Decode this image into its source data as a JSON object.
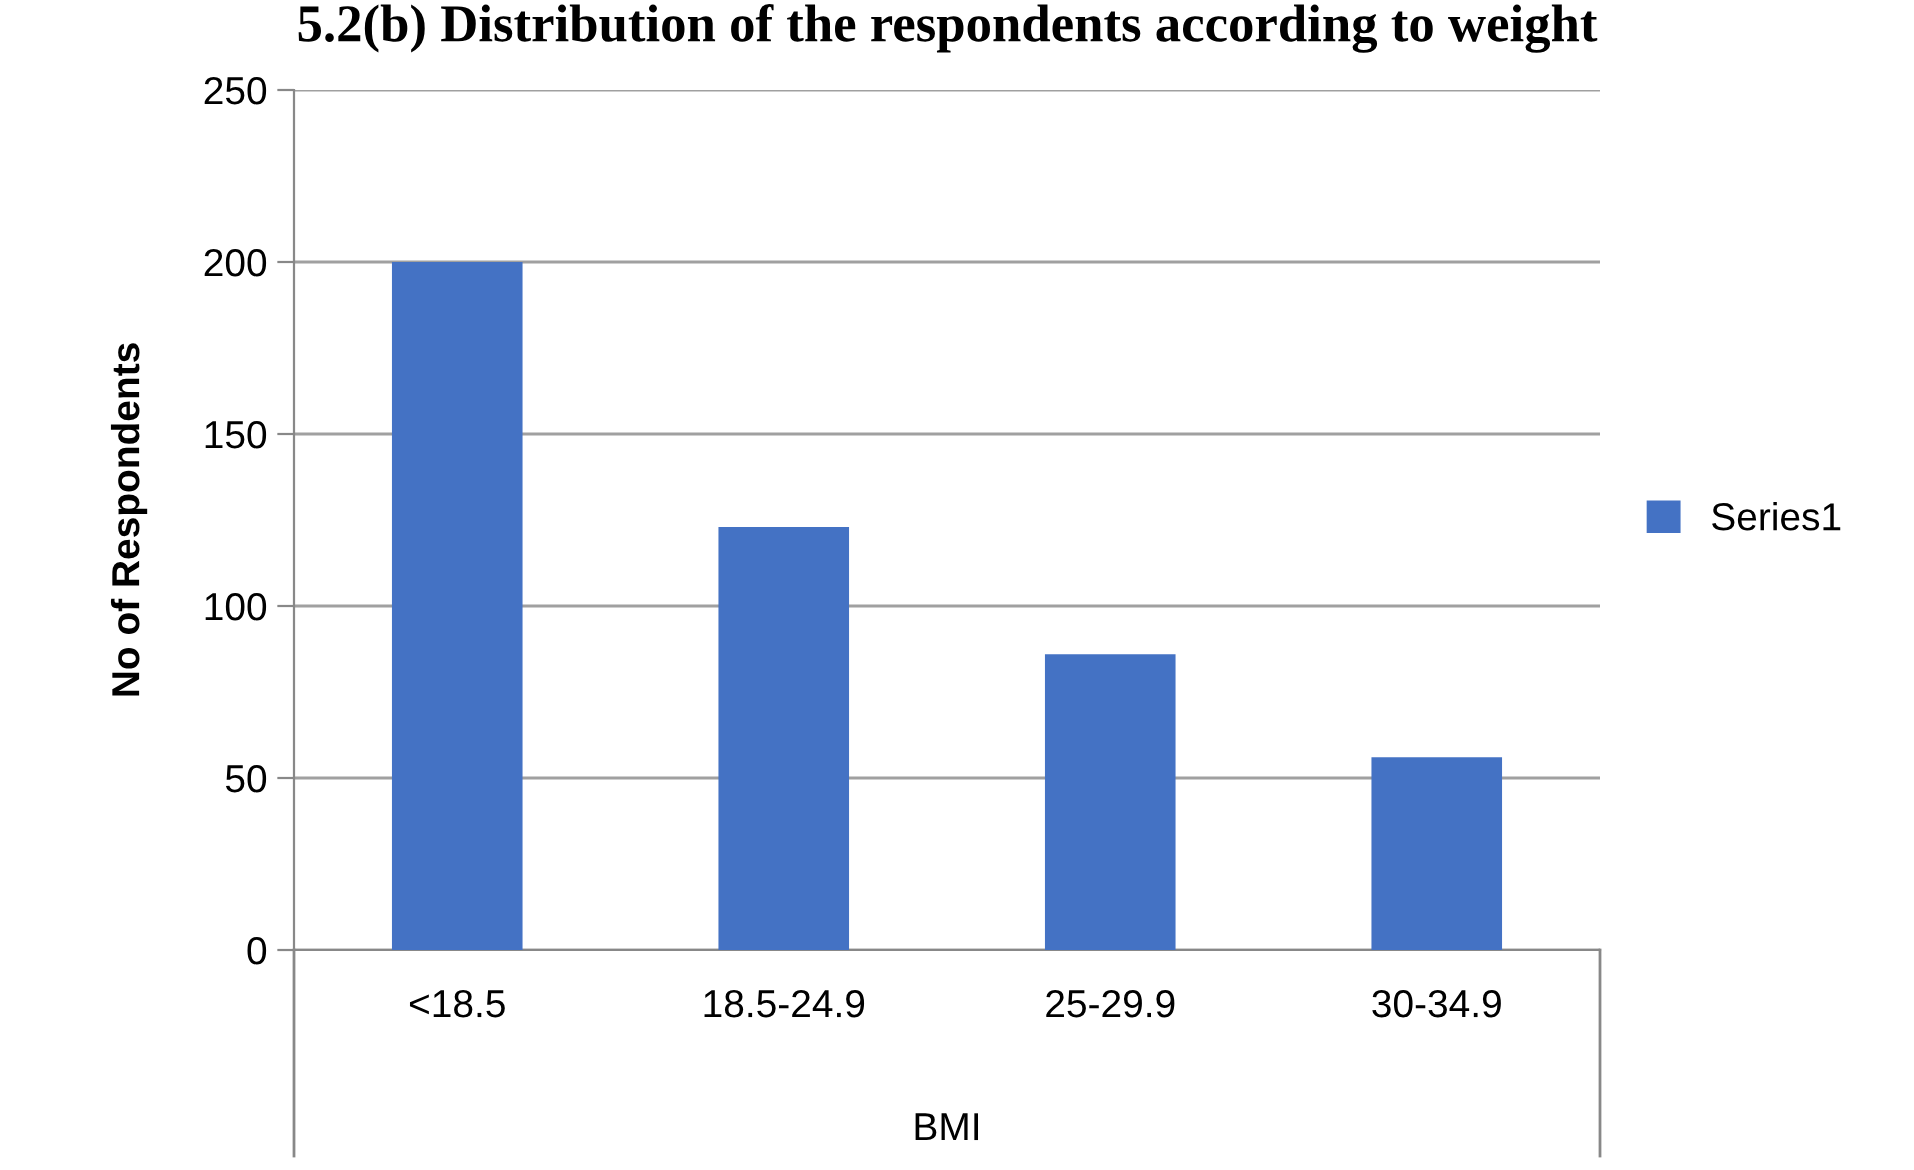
{
  "chart_data": {
    "type": "bar",
    "title": "5.2(b) Distribution of the respondents according to weight",
    "xlabel": "BMI",
    "ylabel": "No of Respondents",
    "categories": [
      "<18.5",
      "18.5-24.9",
      "25-29.9",
      "30-34.9"
    ],
    "series": [
      {
        "name": "Series1",
        "color": "#4472c4",
        "values": [
          200,
          123,
          86,
          56
        ]
      }
    ],
    "ylim": [
      0,
      250
    ],
    "yticks": [
      0,
      50,
      100,
      150,
      200,
      250
    ],
    "grid": "y",
    "legend": "right"
  }
}
